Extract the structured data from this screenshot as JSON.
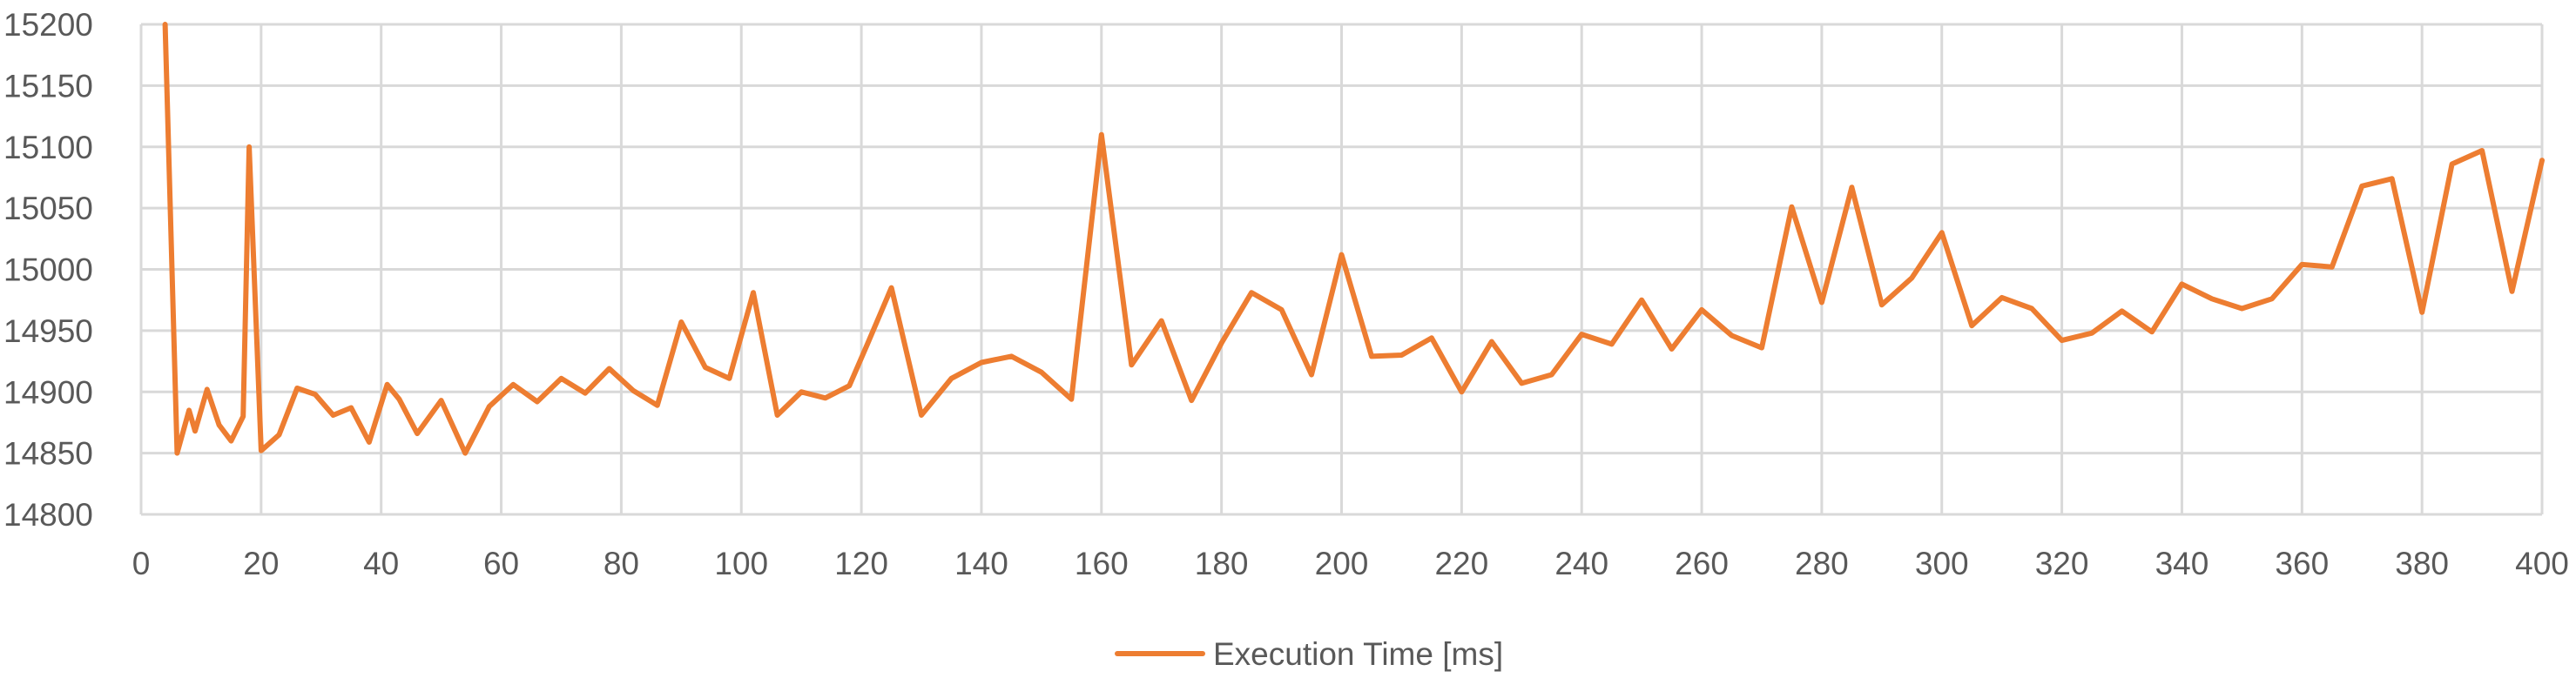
{
  "chart_data": {
    "type": "line",
    "title": "",
    "xlabel": "",
    "ylabel": "",
    "xlim": [
      0,
      400
    ],
    "ylim": [
      14800,
      15200
    ],
    "x_ticks": [
      0,
      20,
      40,
      60,
      80,
      100,
      120,
      140,
      160,
      180,
      200,
      220,
      240,
      260,
      280,
      300,
      320,
      340,
      360,
      380,
      400
    ],
    "y_ticks": [
      14800,
      14850,
      14900,
      14950,
      15000,
      15050,
      15100,
      15150,
      15200
    ],
    "grid": true,
    "legend_position": "bottom",
    "series": [
      {
        "name": "Execution Time [ms]",
        "color": "#ED7D31",
        "x": [
          4,
          6,
          8,
          9,
          11,
          13,
          15,
          17,
          18,
          20,
          23,
          26,
          29,
          32,
          35,
          38,
          41,
          43,
          46,
          50,
          54,
          58,
          62,
          66,
          70,
          74,
          78,
          82,
          86,
          90,
          94,
          98,
          102,
          106,
          110,
          114,
          118,
          121,
          125,
          130,
          135,
          140,
          145,
          150,
          155,
          160,
          165,
          170,
          175,
          180,
          185,
          190,
          195,
          200,
          205,
          210,
          215,
          220,
          225,
          230,
          235,
          240,
          245,
          250,
          255,
          260,
          265,
          270,
          275,
          280,
          285,
          290,
          295,
          300,
          305,
          310,
          315,
          320,
          325,
          330,
          335,
          340,
          345,
          350,
          355,
          360,
          365,
          370,
          375,
          380,
          385,
          390,
          395,
          400
        ],
        "values": [
          15200,
          14850,
          14885,
          14868,
          14902,
          14873,
          14860,
          14880,
          15100,
          14852,
          14865,
          14903,
          14898,
          14881,
          14887,
          14859,
          14906,
          14894,
          14866,
          14893,
          14850,
          14888,
          14906,
          14892,
          14911,
          14899,
          14919,
          14901,
          14889,
          14957,
          14920,
          14911,
          14981,
          14881,
          14900,
          14895,
          14905,
          14939,
          14985,
          14881,
          14911,
          14924,
          14929,
          14916,
          14894,
          15110,
          14922,
          14958,
          14893,
          14940,
          14981,
          14967,
          14914,
          15012,
          14929,
          14930,
          14944,
          14900,
          14941,
          14907,
          14914,
          14947,
          14939,
          14975,
          14935,
          14967,
          14946,
          14936,
          15051,
          14973,
          15067,
          14971,
          14993,
          15030,
          14954,
          14977,
          14968,
          14942,
          14948,
          14966,
          14949,
          14988,
          14976,
          14968,
          14976,
          15004,
          15002,
          15068,
          15074,
          14965,
          15086,
          15097,
          14982,
          15089
        ]
      }
    ]
  }
}
